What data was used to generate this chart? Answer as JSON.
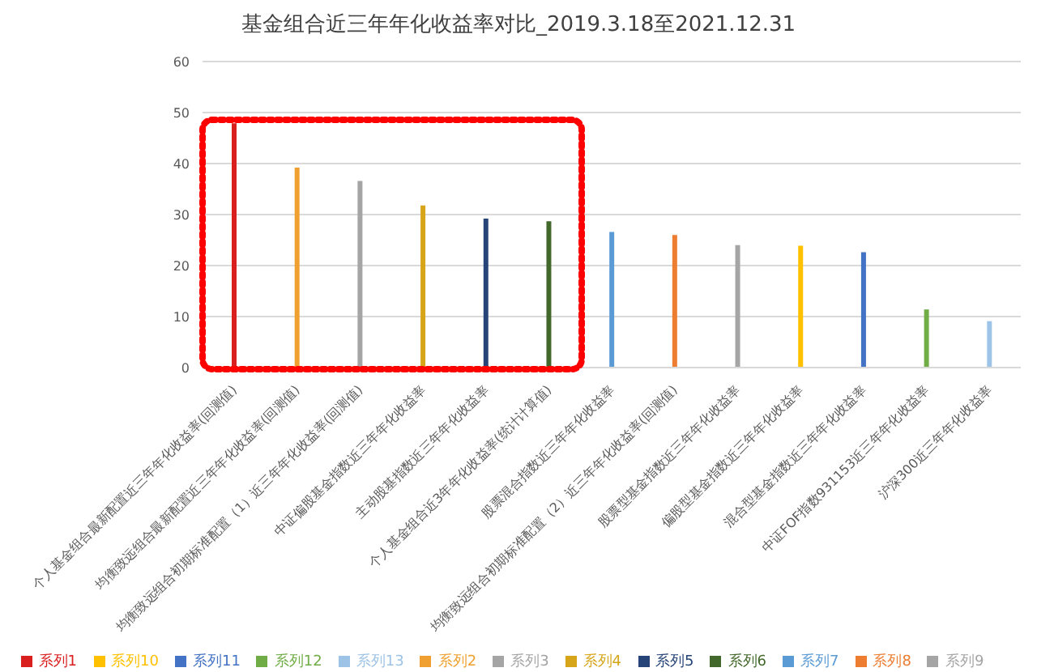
{
  "chart_data": {
    "type": "bar",
    "title": "基金组合近三年年化收益率对比_2019.3.18至2021.12.31",
    "categories": [
      "个人基金组合最新配置近三年年化收益率(回测值)",
      "均衡致远组合最新配置近三年年化收益率(回测值)",
      "均衡致远组合初期标准配置（1）近三年年化收益率(回测值)",
      "中证偏股基金指数近三年年化收益率",
      "主动股基指数近三年年化收益率",
      "个人基金组合近3年年化收益率(统计计算值)",
      "股票混合指数近三年年化收益率",
      "均衡致远组合初期标准配置（2）近三年年化收益率(回测值)",
      "股票型基金指数近三年年化收益率",
      "偏股型基金指数近三年年化收益率",
      "混合型基金指数近三年年化收益率",
      "中证FOF指数931153近三年年化收益率",
      "沪深300近三年年化收益率"
    ],
    "series": [
      {
        "name": "系列1",
        "color": "#d9201f",
        "values": [
          47.9,
          null,
          null,
          null,
          null,
          null,
          null,
          null,
          null,
          null,
          null,
          null,
          null
        ]
      },
      {
        "name": "系列2",
        "color": "#f0a030",
        "values": [
          null,
          39.2,
          null,
          null,
          null,
          null,
          null,
          null,
          null,
          null,
          null,
          null,
          null
        ]
      },
      {
        "name": "系列3",
        "color": "#a5a5a5",
        "values": [
          null,
          null,
          36.6,
          null,
          null,
          null,
          null,
          null,
          null,
          null,
          null,
          null,
          null
        ]
      },
      {
        "name": "系列4",
        "color": "#d6a51a",
        "values": [
          null,
          null,
          null,
          31.8,
          null,
          null,
          null,
          null,
          null,
          null,
          null,
          null,
          null
        ]
      },
      {
        "name": "系列5",
        "color": "#264478",
        "values": [
          null,
          null,
          null,
          null,
          29.2,
          null,
          null,
          null,
          null,
          null,
          null,
          null,
          null
        ]
      },
      {
        "name": "系列6",
        "color": "#43682b",
        "values": [
          null,
          null,
          null,
          null,
          null,
          28.7,
          null,
          null,
          null,
          null,
          null,
          null,
          null
        ]
      },
      {
        "name": "系列7",
        "color": "#5b9bd5",
        "values": [
          null,
          null,
          null,
          null,
          null,
          null,
          26.6,
          null,
          null,
          null,
          null,
          null,
          null
        ]
      },
      {
        "name": "系列8",
        "color": "#ed7d31",
        "values": [
          null,
          null,
          null,
          null,
          null,
          null,
          null,
          26.0,
          null,
          null,
          null,
          null,
          null
        ]
      },
      {
        "name": "系列9",
        "color": "#a5a5a5",
        "values": [
          null,
          null,
          null,
          null,
          null,
          null,
          null,
          null,
          24.0,
          null,
          null,
          null,
          null
        ]
      },
      {
        "name": "系列10",
        "color": "#ffc000",
        "values": [
          null,
          null,
          null,
          null,
          null,
          null,
          null,
          null,
          null,
          23.9,
          null,
          null,
          null
        ]
      },
      {
        "name": "系列11",
        "color": "#4472c4",
        "values": [
          null,
          null,
          null,
          null,
          null,
          null,
          null,
          null,
          null,
          null,
          22.6,
          null,
          null
        ]
      },
      {
        "name": "系列12",
        "color": "#70ad47",
        "values": [
          null,
          null,
          null,
          null,
          null,
          null,
          null,
          null,
          null,
          null,
          null,
          11.4,
          null
        ]
      },
      {
        "name": "系列13",
        "color": "#9dc3e6",
        "values": [
          null,
          null,
          null,
          null,
          null,
          null,
          null,
          null,
          null,
          null,
          null,
          null,
          9.1
        ]
      }
    ],
    "ylim": [
      0,
      60
    ],
    "yticks": [
      0,
      10,
      20,
      30,
      40,
      50,
      60
    ],
    "grid": "y",
    "legend": "bottom"
  }
}
